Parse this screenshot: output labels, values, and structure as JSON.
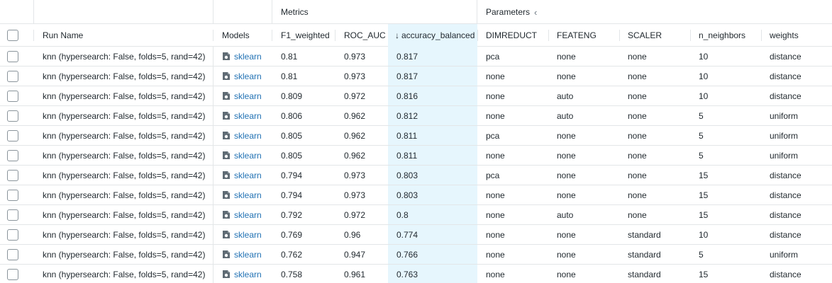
{
  "groups": {
    "metrics": "Metrics",
    "parameters": "Parameters",
    "collapse_icon": "chevron-left-icon"
  },
  "columns": {
    "run_name": "Run Name",
    "models": "Models",
    "f1": "F1_weighted",
    "roc": "ROC_AUC",
    "acc": "accuracy_balanced",
    "dimreduct": "DIMREDUCT",
    "feateng": "FEATENG",
    "scaler": "SCALER",
    "neighbors": "n_neighbors",
    "weights": "weights",
    "sort_icon": "arrow-down-icon"
  },
  "rows": [
    {
      "run": "knn (hypersearch: False, folds=5, rand=42)",
      "model": "sklearn",
      "f1": "0.81",
      "roc": "0.973",
      "acc": "0.817",
      "dim": "pca",
      "feat": "none",
      "scaler": "none",
      "nn": "10",
      "w": "distance"
    },
    {
      "run": "knn (hypersearch: False, folds=5, rand=42)",
      "model": "sklearn",
      "f1": "0.81",
      "roc": "0.973",
      "acc": "0.817",
      "dim": "none",
      "feat": "none",
      "scaler": "none",
      "nn": "10",
      "w": "distance"
    },
    {
      "run": "knn (hypersearch: False, folds=5, rand=42)",
      "model": "sklearn",
      "f1": "0.809",
      "roc": "0.972",
      "acc": "0.816",
      "dim": "none",
      "feat": "auto",
      "scaler": "none",
      "nn": "10",
      "w": "distance"
    },
    {
      "run": "knn (hypersearch: False, folds=5, rand=42)",
      "model": "sklearn",
      "f1": "0.806",
      "roc": "0.962",
      "acc": "0.812",
      "dim": "none",
      "feat": "auto",
      "scaler": "none",
      "nn": "5",
      "w": "uniform"
    },
    {
      "run": "knn (hypersearch: False, folds=5, rand=42)",
      "model": "sklearn",
      "f1": "0.805",
      "roc": "0.962",
      "acc": "0.811",
      "dim": "pca",
      "feat": "none",
      "scaler": "none",
      "nn": "5",
      "w": "uniform"
    },
    {
      "run": "knn (hypersearch: False, folds=5, rand=42)",
      "model": "sklearn",
      "f1": "0.805",
      "roc": "0.962",
      "acc": "0.811",
      "dim": "none",
      "feat": "none",
      "scaler": "none",
      "nn": "5",
      "w": "uniform"
    },
    {
      "run": "knn (hypersearch: False, folds=5, rand=42)",
      "model": "sklearn",
      "f1": "0.794",
      "roc": "0.973",
      "acc": "0.803",
      "dim": "pca",
      "feat": "none",
      "scaler": "none",
      "nn": "15",
      "w": "distance"
    },
    {
      "run": "knn (hypersearch: False, folds=5, rand=42)",
      "model": "sklearn",
      "f1": "0.794",
      "roc": "0.973",
      "acc": "0.803",
      "dim": "none",
      "feat": "none",
      "scaler": "none",
      "nn": "15",
      "w": "distance"
    },
    {
      "run": "knn (hypersearch: False, folds=5, rand=42)",
      "model": "sklearn",
      "f1": "0.792",
      "roc": "0.972",
      "acc": "0.8",
      "dim": "none",
      "feat": "auto",
      "scaler": "none",
      "nn": "15",
      "w": "distance"
    },
    {
      "run": "knn (hypersearch: False, folds=5, rand=42)",
      "model": "sklearn",
      "f1": "0.769",
      "roc": "0.96",
      "acc": "0.774",
      "dim": "none",
      "feat": "none",
      "scaler": "standard",
      "nn": "10",
      "w": "distance"
    },
    {
      "run": "knn (hypersearch: False, folds=5, rand=42)",
      "model": "sklearn",
      "f1": "0.762",
      "roc": "0.947",
      "acc": "0.766",
      "dim": "none",
      "feat": "none",
      "scaler": "standard",
      "nn": "5",
      "w": "uniform"
    },
    {
      "run": "knn (hypersearch: False, folds=5, rand=42)",
      "model": "sklearn",
      "f1": "0.758",
      "roc": "0.961",
      "acc": "0.763",
      "dim": "none",
      "feat": "none",
      "scaler": "standard",
      "nn": "15",
      "w": "distance"
    }
  ]
}
